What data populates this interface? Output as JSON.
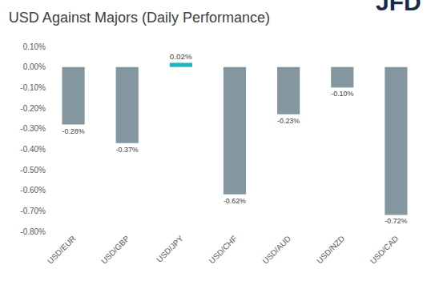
{
  "chart_data": {
    "type": "bar",
    "title": "USD Against Majors (Daily Performance)",
    "annotations": [
      "JFD"
    ],
    "categories": [
      "USD/EUR",
      "USD/GBP",
      "USD/JPY",
      "USD/CHF",
      "USD/AUD",
      "USD/NZD",
      "USD/CAD"
    ],
    "values": [
      -0.28,
      -0.37,
      0.02,
      -0.62,
      -0.23,
      -0.1,
      -0.72
    ],
    "value_labels": [
      "-0.28%",
      "-0.37%",
      "0.02%",
      "-0.62%",
      "-0.23%",
      "-0.10%",
      "-0.72%"
    ],
    "colors": [
      "#8497a0",
      "#8497a0",
      "#1fb5c0",
      "#8497a0",
      "#8497a0",
      "#8497a0",
      "#8497a0"
    ],
    "ylim": [
      -0.8,
      0.1
    ],
    "yticks": [
      {
        "value": 0.1,
        "label": "0.10%"
      },
      {
        "value": 0.0,
        "label": "0.00%"
      },
      {
        "value": -0.1,
        "label": "-0.10%"
      },
      {
        "value": -0.2,
        "label": "-0.20%"
      },
      {
        "value": -0.3,
        "label": "-0.30%"
      },
      {
        "value": -0.4,
        "label": "-0.40%"
      },
      {
        "value": -0.5,
        "label": "-0.50%"
      },
      {
        "value": -0.6,
        "label": "-0.60%"
      },
      {
        "value": -0.7,
        "label": "-0.70%"
      },
      {
        "value": -0.8,
        "label": "-0.80%"
      }
    ],
    "grid": false,
    "data_labels": true
  }
}
